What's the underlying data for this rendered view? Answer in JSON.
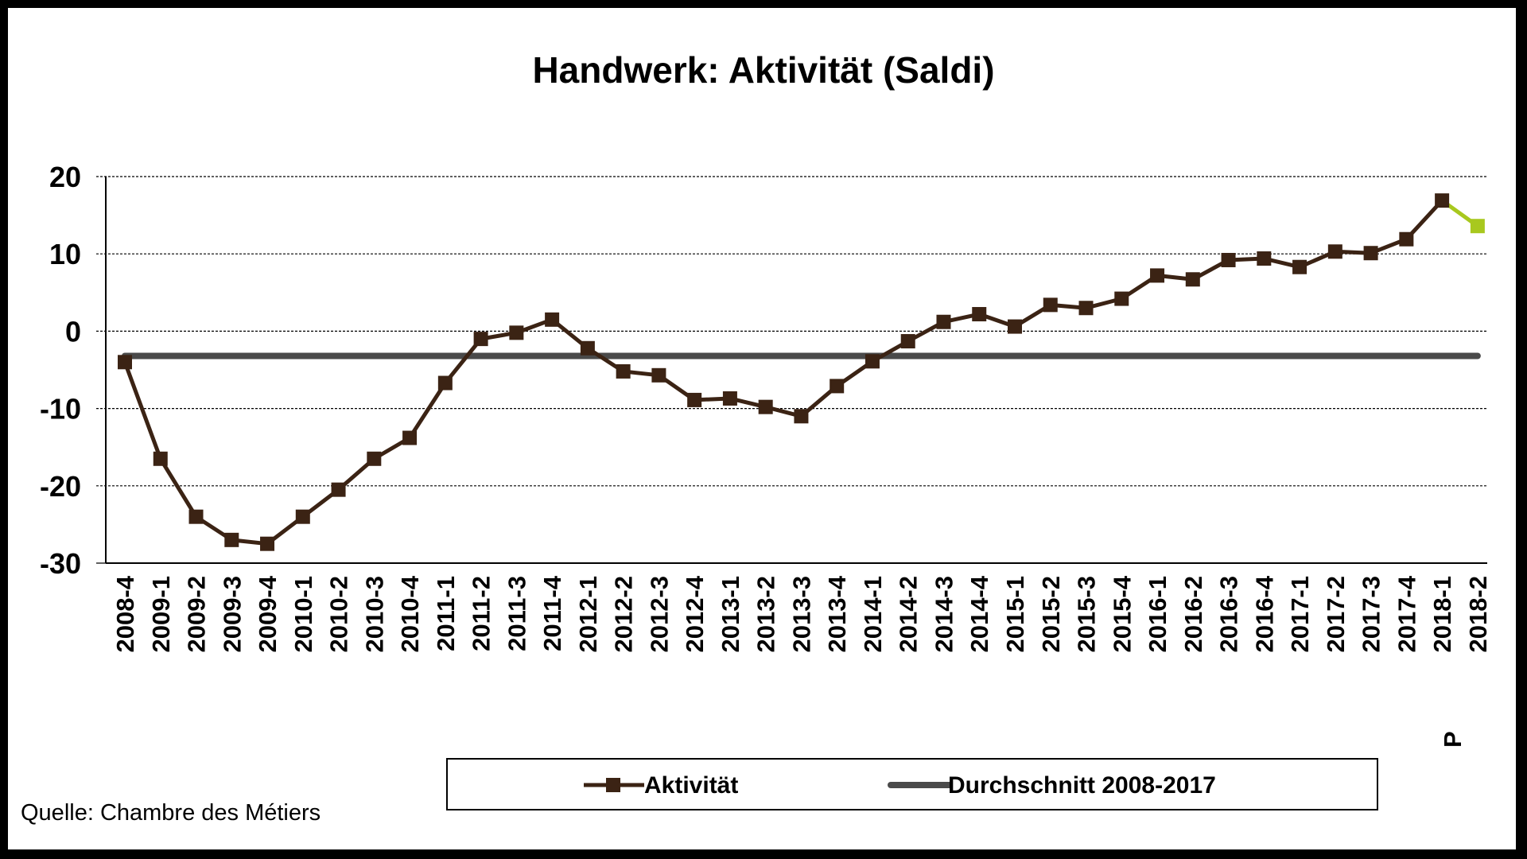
{
  "chart_data": {
    "type": "line",
    "title": "Handwerk: Aktivität (Saldi)",
    "xlabel": "",
    "ylabel": "",
    "ylim": [
      -30,
      20
    ],
    "yticks": [
      "20",
      "10",
      "0",
      "-10",
      "-20",
      "-30"
    ],
    "ytick_values": [
      20,
      10,
      0,
      -10,
      -20,
      -30
    ],
    "grid": true,
    "legend_position": "bottom",
    "categories": [
      "2008-4",
      "2009-1",
      "2009-2",
      "2009-3",
      "2009-4",
      "2010-1",
      "2010-2",
      "2010-3",
      "2010-4",
      "2011-1",
      "2011-2",
      "2011-3",
      "2011-4",
      "2012-1",
      "2012-2",
      "2012-3",
      "2012-4",
      "2013-1",
      "2013-2",
      "2013-3",
      "2013-4",
      "2014-1",
      "2014-2",
      "2014-3",
      "2014-4",
      "2015-1",
      "2015-2",
      "2015-3",
      "2015-4",
      "2016-1",
      "2016-2",
      "2016-3",
      "2016-4",
      "2017-1",
      "2017-2",
      "2017-3",
      "2017-4",
      "2018-1",
      "2018-2"
    ],
    "last_category_suffix": "P",
    "series": [
      {
        "name": "Aktivität",
        "color": "#3b2314",
        "forecast_color": "#a8c81e",
        "values": [
          -4,
          -16.5,
          -24,
          -27,
          -27.5,
          -24,
          -20.5,
          -16.5,
          -13.8,
          -6.7,
          -1,
          -0.2,
          1.5,
          -2.2,
          -5.2,
          -5.7,
          -8.9,
          -8.7,
          -9.8,
          -11,
          -7.1,
          -3.9,
          -1.3,
          1.2,
          2.2,
          0.6,
          3.4,
          3,
          4.2,
          7.2,
          6.7,
          9.2,
          9.4,
          8.3,
          10.3,
          10.1,
          11.9,
          16.9,
          13.6
        ]
      },
      {
        "name": "Durchschnitt 2008-2017",
        "color": "#4a4a4a",
        "value": -3.2
      }
    ],
    "source": "Quelle: Chambre des Métiers"
  }
}
